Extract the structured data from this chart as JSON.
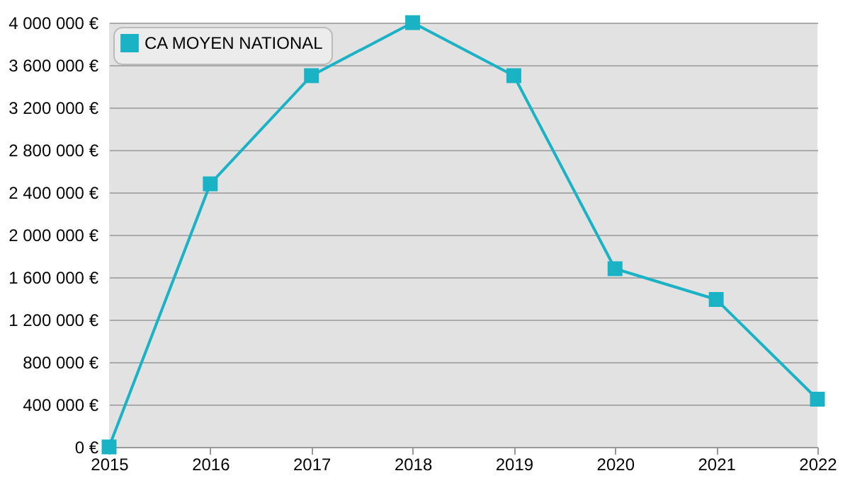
{
  "chart_data": {
    "type": "line",
    "x": [
      2015,
      2016,
      2017,
      2018,
      2019,
      2020,
      2021,
      2022
    ],
    "series": [
      {
        "name": "CA MOYEN NATIONAL",
        "color": "#1ab3c6",
        "values": [
          0,
          2480000,
          3500000,
          4000000,
          3500000,
          1680000,
          1390000,
          450000
        ]
      }
    ],
    "xlim": [
      2015,
      2022
    ],
    "xticks": [
      2015,
      2016,
      2017,
      2018,
      2019,
      2020,
      2021,
      2022
    ],
    "ylim": [
      0,
      4000000
    ],
    "yticks": [
      {
        "value": 0,
        "label": "0 €"
      },
      {
        "value": 400000,
        "label": "400 000 €"
      },
      {
        "value": 800000,
        "label": "800 000 €"
      },
      {
        "value": 1200000,
        "label": "1 200 000 €"
      },
      {
        "value": 1600000,
        "label": "1 600 000 €"
      },
      {
        "value": 2000000,
        "label": "2 000 000 €"
      },
      {
        "value": 2400000,
        "label": "2 400 000 €"
      },
      {
        "value": 2800000,
        "label": "2 800 000 €"
      },
      {
        "value": 3200000,
        "label": "3 200 000 €"
      },
      {
        "value": 3600000,
        "label": "3 600 000 €"
      },
      {
        "value": 4000000,
        "label": "4 000 000 €"
      }
    ],
    "grid": "y",
    "legend": "top left",
    "marker": "square",
    "line_style": "solid"
  }
}
